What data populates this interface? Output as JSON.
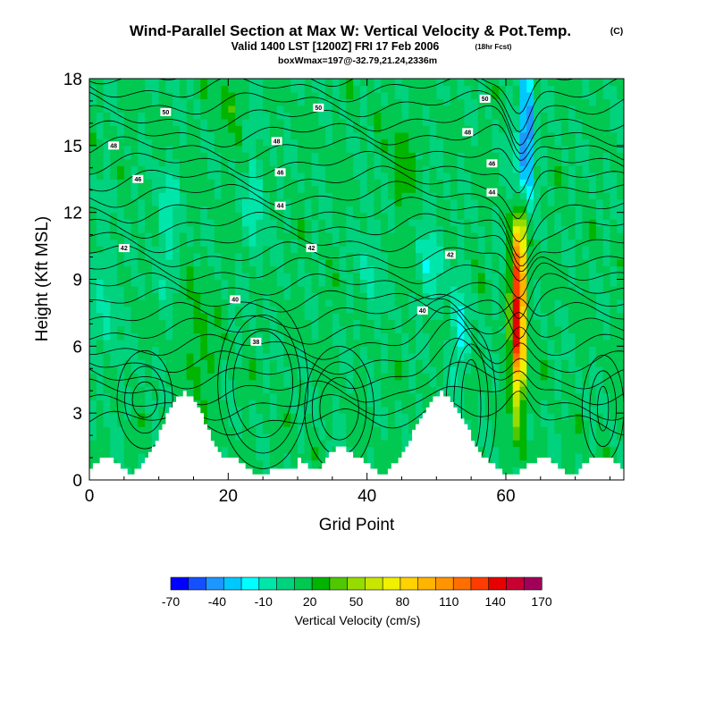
{
  "chart_data": {
    "type": "heatmap",
    "title": "Wind-Parallel Section at Max W: Vertical Velocity & Pot.Temp.",
    "copyright": "(C)",
    "subtitle": "Valid 1400 LST [1200Z] FRI 17 Feb 2006",
    "forecast_note": "(18hr Fcst)",
    "info": "boxWmax=197@-32.79,21.24,2336m",
    "xlabel": "Grid Point",
    "ylabel": "Height (Kft MSL)",
    "xlim": [
      0,
      77
    ],
    "ylim": [
      0,
      18
    ],
    "xticks": [
      "0",
      "20",
      "40",
      "60"
    ],
    "yticks": [
      "0",
      "3",
      "6",
      "9",
      "12",
      "15",
      "18"
    ],
    "colorbar": {
      "label": "Vertical Velocity (cm/s)",
      "tick_labels": [
        "-70",
        "-40",
        "-10",
        "20",
        "50",
        "80",
        "110",
        "140",
        "170"
      ],
      "colors": [
        "#0000ff",
        "#1450ff",
        "#1e96ff",
        "#00c8ff",
        "#00ffff",
        "#00e6aa",
        "#00d27d",
        "#00c850",
        "#00b400",
        "#50c800",
        "#96dc00",
        "#c8e600",
        "#f0f000",
        "#ffd200",
        "#ffb400",
        "#ff9600",
        "#ff6e00",
        "#ff3c00",
        "#e60000",
        "#c80032",
        "#a0005a"
      ]
    },
    "contour_labels": [
      {
        "text": "50",
        "gx": 11.0,
        "km": 16.5
      },
      {
        "text": "50",
        "gx": 33.0,
        "km": 16.7
      },
      {
        "text": "50",
        "gx": 57.0,
        "km": 17.1
      },
      {
        "text": "48",
        "gx": 3.5,
        "km": 15.0
      },
      {
        "text": "48",
        "gx": 27.0,
        "km": 15.2
      },
      {
        "text": "48",
        "gx": 54.5,
        "km": 15.6
      },
      {
        "text": "46",
        "gx": 7.0,
        "km": 13.5
      },
      {
        "text": "46",
        "gx": 27.5,
        "km": 13.8
      },
      {
        "text": "46",
        "gx": 58.0,
        "km": 14.2
      },
      {
        "text": "44",
        "gx": 27.5,
        "km": 12.3
      },
      {
        "text": "44",
        "gx": 58.0,
        "km": 12.9
      },
      {
        "text": "42",
        "gx": 5.0,
        "km": 10.4
      },
      {
        "text": "42",
        "gx": 32.0,
        "km": 10.4
      },
      {
        "text": "42",
        "gx": 52.0,
        "km": 10.1
      },
      {
        "text": "40",
        "gx": 21.0,
        "km": 8.1
      },
      {
        "text": "40",
        "gx": 48.0,
        "km": 7.6
      },
      {
        "text": "38",
        "gx": 24.0,
        "km": 6.2
      }
    ]
  }
}
